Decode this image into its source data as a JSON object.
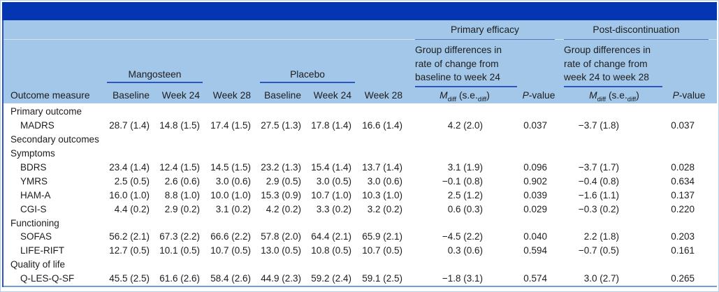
{
  "colors": {
    "title_bar": "#0435b2",
    "header_bg": "#a2c7e9",
    "underline_strong": "#2b55c8",
    "underline_thin": "#5577c2",
    "left_accent": "#2e52c4",
    "bottom_rule": "#6f9fd9",
    "frame_border": "#b5cdeb",
    "text": "#1d1d1d"
  },
  "header": {
    "primary_group": "Primary efficacy",
    "post_group": "Post-discontinuation",
    "primary_desc_lines": [
      "Group differences in",
      "rate of change from",
      "baseline to week 24"
    ],
    "post_desc_lines": [
      "Group differences in",
      "rate of change from",
      "week 24 to week 28"
    ],
    "mangosteen": "Mangosteen",
    "placebo": "Placebo",
    "outcome_measure": "Outcome measure",
    "timepoints": [
      "Baseline",
      "Week 24",
      "Week 28",
      "Baseline",
      "Week 24",
      "Week 28"
    ],
    "mdiff": {
      "m": "M",
      "sub": "diff",
      "se": " (s.e.",
      "se_sub": "diff",
      "close": ")"
    },
    "pvalue": {
      "p": "P",
      "rest": "-value"
    }
  },
  "table": {
    "rows": [
      {
        "type": "section",
        "label": "Primary outcome",
        "values": [
          "",
          "",
          "",
          "",
          "",
          "",
          "",
          "",
          "",
          ""
        ]
      },
      {
        "type": "measure",
        "label": "MADRS",
        "values": [
          "28.7 (1.4)",
          "14.8 (1.5)",
          "17.4 (1.5)",
          "27.5 (1.3)",
          "17.8 (1.4)",
          "16.6 (1.4)",
          "4.2 (2.0)",
          "0.037",
          "−3.7 (1.8)",
          "0.037"
        ]
      },
      {
        "type": "section",
        "label": "Secondary outcomes",
        "values": [
          "",
          "",
          "",
          "",
          "",
          "",
          "",
          "",
          "",
          ""
        ]
      },
      {
        "type": "section",
        "label": "Symptoms",
        "values": [
          "",
          "",
          "",
          "",
          "",
          "",
          "",
          "",
          "",
          ""
        ]
      },
      {
        "type": "measure",
        "label": "BDRS",
        "values": [
          "23.4 (1.4)",
          "12.4 (1.5)",
          "14.5 (1.5)",
          "23.2 (1.3)",
          "15.4 (1.4)",
          "13.7 (1.4)",
          "3.1 (1.9)",
          "0.096",
          "−3.7 (1.7)",
          "0.028"
        ]
      },
      {
        "type": "measure",
        "label": "YMRS",
        "values": [
          "2.5 (0.5)",
          "2.6 (0.6)",
          "3.0 (0.6)",
          "2.9 (0.5)",
          "3.0 (0.5)",
          "3.0 (0.6)",
          "−0.1 (0.8)",
          "0.902",
          "−0.4 (0.8)",
          "0.634"
        ]
      },
      {
        "type": "measure",
        "label": "HAM-A",
        "values": [
          "16.0 (1.0)",
          "8.8 (1.0)",
          "10.0 (1.0)",
          "15.3 (0.9)",
          "10.7 (1.0)",
          "10.3 (1.0)",
          "2.5 (1.2)",
          "0.039",
          "−1.6 (1.1)",
          "0.137"
        ]
      },
      {
        "type": "measure",
        "label": "CGI-S",
        "values": [
          "4.4 (0.2)",
          "2.9 (0.2)",
          "3.1 (0.2)",
          "4.2 (0.2)",
          "3.3 (0.2)",
          "3.2 (0.2)",
          "0.6 (0.3)",
          "0.029",
          "−0.3 (0.2)",
          "0.220"
        ]
      },
      {
        "type": "section",
        "label": "Functioning",
        "values": [
          "",
          "",
          "",
          "",
          "",
          "",
          "",
          "",
          "",
          ""
        ]
      },
      {
        "type": "measure",
        "label": "SOFAS",
        "values": [
          "56.2 (2.1)",
          "67.3 (2.2)",
          "66.6 (2.2)",
          "57.8 (2.0)",
          "64.4 (2.1)",
          "65.9 (2.1)",
          "−4.5 (2.2)",
          "0.040",
          "2.2 (1.8)",
          "0.203"
        ]
      },
      {
        "type": "measure",
        "label": "LIFE-RIFT",
        "values": [
          "12.7 (0.5)",
          "10.1 (0.5)",
          "10.7 (0.5)",
          "13.0 (0.5)",
          "10.8 (0.5)",
          "10.7 (0.5)",
          "0.3 (0.6)",
          "0.594",
          "−0.7 (0.5)",
          "0.161"
        ]
      },
      {
        "type": "section",
        "label": "Quality of life",
        "values": [
          "",
          "",
          "",
          "",
          "",
          "",
          "",
          "",
          "",
          ""
        ]
      },
      {
        "type": "measure",
        "label": "Q-LES-Q-SF",
        "values": [
          "45.5 (2.5)",
          "61.6 (2.6)",
          "58.4 (2.6)",
          "44.9 (2.3)",
          "59.2 (2.4)",
          "59.1 (2.5)",
          "−1.8 (3.1)",
          "0.574",
          "3.0 (2.7)",
          "0.265"
        ]
      }
    ]
  }
}
